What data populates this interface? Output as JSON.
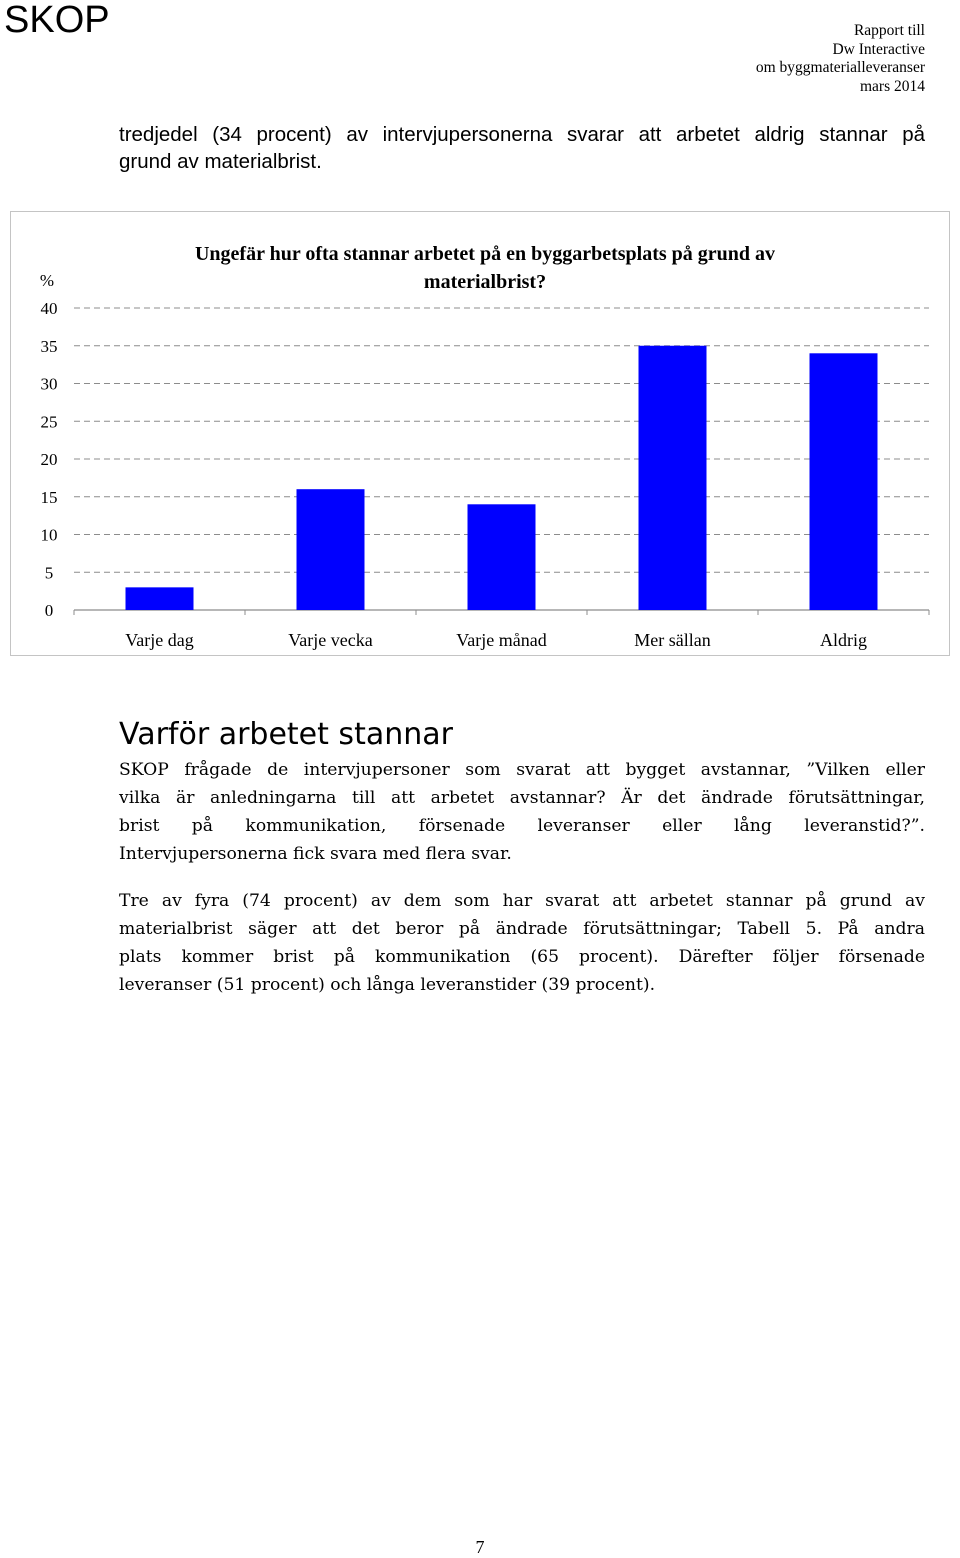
{
  "header": {
    "logo": "SKOP",
    "report_lines": [
      "Rapport till",
      "Dw Interactive",
      "om byggmaterialleveranser",
      "mars 2014"
    ]
  },
  "intro": {
    "lines": [
      "tredjedel (34 procent) av intervjupersonerna svarar att arbetet aldrig stannar på",
      "grund av materialbrist."
    ]
  },
  "chart_data": {
    "type": "bar",
    "title_lines": [
      "Ungefär hur ofta stannar arbetet på en byggarbetsplats på grund av",
      "materialbrist?"
    ],
    "ylabel": "%",
    "categories": [
      "Varje dag",
      "Varje vecka",
      "Varje månad",
      "Mer sällan",
      "Aldrig"
    ],
    "values": [
      3,
      16,
      14,
      35,
      34
    ],
    "ylim": [
      0,
      40
    ],
    "yticks": [
      "0",
      "5",
      "10",
      "15",
      "20",
      "25",
      "30",
      "35",
      "40"
    ],
    "grid": "dashed horizontal",
    "bar_color": "#0000ff"
  },
  "section": {
    "heading": "Varför arbetet stannar",
    "para1_lines": [
      "SKOP frågade de intervjupersoner som svarat att bygget avstannar, ”Vilken eller",
      "vilka är anledningarna till att arbetet avstannar? Är det ändrade förutsättningar,",
      "brist på kommunikation, försenade leveranser eller lång leveranstid?”.",
      "Intervjupersonerna fick svara med flera svar."
    ],
    "para2_lines": [
      "Tre av fyra (74 procent) av dem som har svarat att arbetet stannar på grund av",
      "materialbrist säger att det beror på ändrade förutsättningar; Tabell 5. På andra",
      "plats kommer brist på kommunikation (65 procent). Därefter följer försenade",
      "leveranser (51 procent) och långa leveranstider (39 procent)."
    ]
  },
  "footer": {
    "page_number": "7"
  }
}
